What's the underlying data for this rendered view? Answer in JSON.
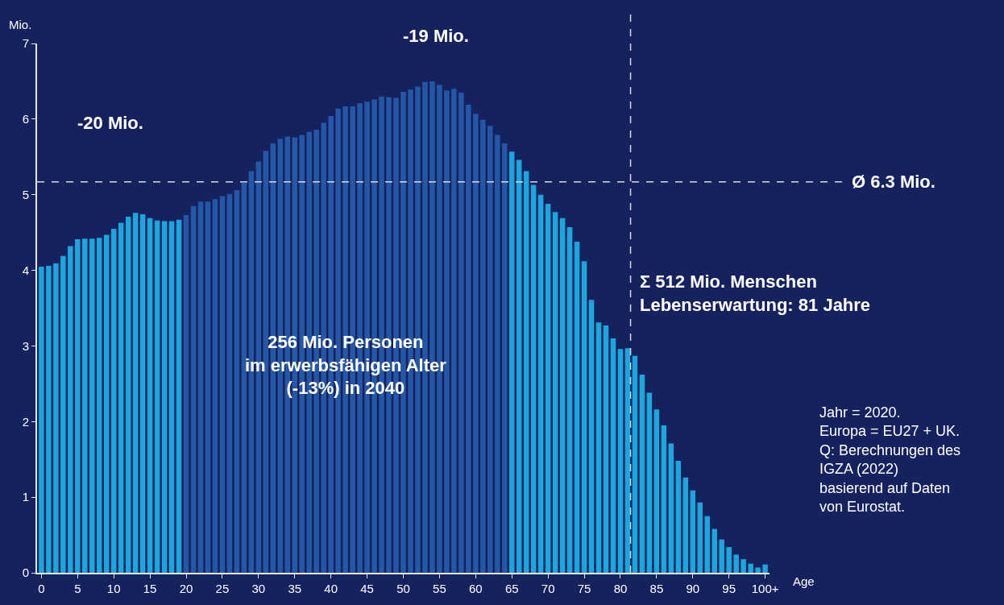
{
  "chart_data": {
    "type": "bar",
    "ylabel": "Mio.",
    "xlabel": "Age",
    "x": [
      0,
      1,
      2,
      3,
      4,
      5,
      6,
      7,
      8,
      9,
      10,
      11,
      12,
      13,
      14,
      15,
      16,
      17,
      18,
      19,
      20,
      21,
      22,
      23,
      24,
      25,
      26,
      27,
      28,
      29,
      30,
      31,
      32,
      33,
      34,
      35,
      36,
      37,
      38,
      39,
      40,
      41,
      42,
      43,
      44,
      45,
      46,
      47,
      48,
      49,
      50,
      51,
      52,
      53,
      54,
      55,
      56,
      57,
      58,
      59,
      60,
      61,
      62,
      63,
      64,
      65,
      66,
      67,
      68,
      69,
      70,
      71,
      72,
      73,
      74,
      75,
      76,
      77,
      78,
      79,
      80,
      81,
      82,
      83,
      84,
      85,
      86,
      87,
      88,
      89,
      90,
      91,
      92,
      93,
      94,
      95,
      96,
      97,
      98,
      99,
      100
    ],
    "values": [
      4.05,
      4.06,
      4.09,
      4.19,
      4.32,
      4.41,
      4.42,
      4.42,
      4.43,
      4.47,
      4.55,
      4.63,
      4.71,
      4.76,
      4.74,
      4.69,
      4.66,
      4.65,
      4.65,
      4.67,
      4.73,
      4.85,
      4.91,
      4.91,
      4.94,
      4.98,
      5.01,
      5.06,
      5.16,
      5.31,
      5.44,
      5.58,
      5.68,
      5.74,
      5.77,
      5.76,
      5.79,
      5.83,
      5.86,
      5.95,
      6.04,
      6.14,
      6.17,
      6.17,
      6.21,
      6.23,
      6.26,
      6.3,
      6.29,
      6.28,
      6.36,
      6.39,
      6.43,
      6.49,
      6.5,
      6.45,
      6.38,
      6.4,
      6.35,
      6.19,
      6.07,
      5.99,
      5.91,
      5.79,
      5.68,
      5.57,
      5.46,
      5.31,
      5.13,
      5.0,
      4.88,
      4.77,
      4.69,
      4.57,
      4.38,
      4.12,
      3.61,
      3.31,
      3.27,
      3.1,
      2.96,
      2.97,
      2.87,
      2.62,
      2.38,
      2.16,
      1.95,
      1.71,
      1.48,
      1.26,
      1.09,
      0.93,
      0.75,
      0.58,
      0.44,
      0.34,
      0.24,
      0.18,
      0.12,
      0.07,
      0.11
    ],
    "colors": [
      "#1ba6de",
      "#1ba6de",
      "#1ba6de",
      "#1ba6de",
      "#1ba6de",
      "#1ba6de",
      "#1ba6de",
      "#1ba6de",
      "#1ba6de",
      "#1ba6de",
      "#1ba6de",
      "#1ba6de",
      "#1ba6de",
      "#1ba6de",
      "#1ba6de",
      "#1ba6de",
      "#1ba6de",
      "#1ba6de",
      "#1ba6de",
      "#1ba6de",
      "#2457a6",
      "#2457a6",
      "#2457a6",
      "#2457a6",
      "#2457a6",
      "#2457a6",
      "#2457a6",
      "#2457a6",
      "#2457a6",
      "#2457a6",
      "#2457a6",
      "#2457a6",
      "#2457a6",
      "#2457a6",
      "#2457a6",
      "#2457a6",
      "#2457a6",
      "#2457a6",
      "#2457a6",
      "#2457a6",
      "#2457a6",
      "#2457a6",
      "#2457a6",
      "#2457a6",
      "#2457a6",
      "#2457a6",
      "#2457a6",
      "#2457a6",
      "#2457a6",
      "#2457a6",
      "#2457a6",
      "#2457a6",
      "#2457a6",
      "#2457a6",
      "#2457a6",
      "#2457a6",
      "#2457a6",
      "#2457a6",
      "#2457a6",
      "#2457a6",
      "#2457a6",
      "#2457a6",
      "#2457a6",
      "#2457a6",
      "#2457a6",
      "#1ba6de",
      "#1ba6de",
      "#1ba6de",
      "#1ba6de",
      "#1ba6de",
      "#1ba6de",
      "#1ba6de",
      "#1ba6de",
      "#1ba6de",
      "#1ba6de",
      "#1ba6de",
      "#1ba6de",
      "#1ba6de",
      "#1ba6de",
      "#1ba6de",
      "#1ba6de",
      "#1ba6de",
      "#1ba6de",
      "#1ba6de",
      "#1ba6de",
      "#1ba6de",
      "#1ba6de",
      "#1ba6de",
      "#1ba6de",
      "#1ba6de",
      "#1ba6de",
      "#1ba6de",
      "#1ba6de",
      "#1ba6de",
      "#1ba6de",
      "#1ba6de",
      "#1ba6de",
      "#1ba6de",
      "#1ba6de",
      "#1ba6de",
      "#1ba6de"
    ],
    "xlim": [
      -0.6,
      100.6
    ],
    "xticks": [
      0,
      5,
      10,
      15,
      20,
      25,
      30,
      35,
      40,
      45,
      50,
      55,
      60,
      65,
      70,
      75,
      80,
      85,
      90,
      95,
      {
        "value": 100,
        "label": "100+"
      }
    ],
    "ylim": [
      0,
      7
    ],
    "yticks": [
      0,
      1,
      2,
      3,
      4,
      5,
      6,
      7
    ],
    "ref_lines": [
      {
        "axis": "y",
        "value": 5.17,
        "label": "Ø 6.3 Mio.",
        "color": "#d9d9e6",
        "line_style": "dashed"
      },
      {
        "axis": "x",
        "value": 81.4,
        "color": "#d9d9e6",
        "line_style": "dashed"
      }
    ],
    "annotations": [
      "-20 Mio.",
      "-19 Mio.",
      "256 Mio. Personen\nim erwerbsfähigen Alter\n(-13%) in 2040",
      "Σ 512 Mio. Menschen\nLebenserwartung: 81 Jahre",
      "Jahr = 2020.\nEuropa = EU27 + UK.\nQ: Berechnungen des\nIGZA (2022)\nbasierend auf Daten\nvon Eurostat."
    ]
  }
}
